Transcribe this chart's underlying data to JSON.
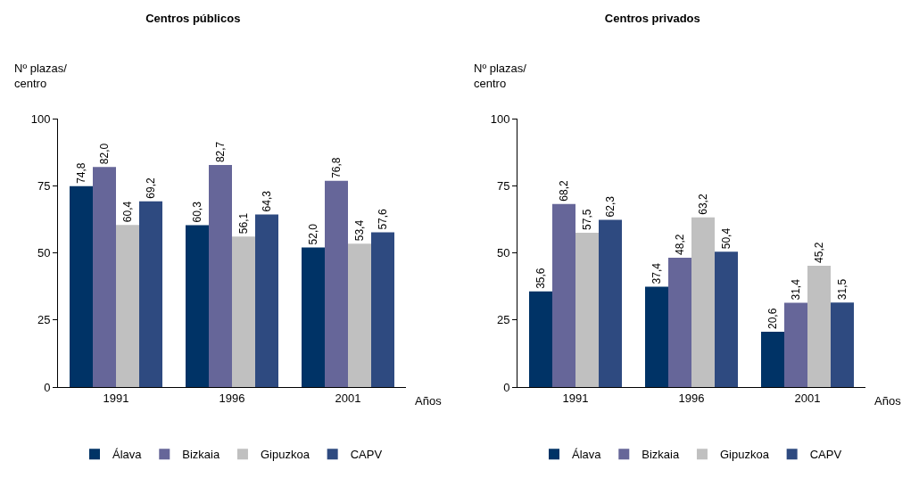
{
  "chart_data": [
    {
      "type": "bar",
      "title": "Centros públicos",
      "ylabel": "Nº plazas/ centro",
      "xlabel": "Años",
      "categories": [
        "1991",
        "1996",
        "2001"
      ],
      "ylim": [
        0,
        100
      ],
      "yticks": [
        0,
        25,
        50,
        75,
        100
      ],
      "grid": false,
      "legend": "bottom",
      "series": [
        {
          "name": "Álava",
          "color": "#003366",
          "values": [
            74.8,
            60.3,
            52.0
          ],
          "value_labels": [
            "74,8",
            "60,3",
            "52,0"
          ]
        },
        {
          "name": "Bizkaia",
          "color": "#666699",
          "values": [
            82.0,
            82.7,
            76.8
          ],
          "value_labels": [
            "82,0",
            "82,7",
            "76,8"
          ]
        },
        {
          "name": "Gipuzkoa",
          "color": "#c0c0c0",
          "values": [
            60.4,
            56.1,
            53.4
          ],
          "value_labels": [
            "60,4",
            "56,1",
            "53,4"
          ]
        },
        {
          "name": "CAPV",
          "color": "#2e4a80",
          "values": [
            69.2,
            64.3,
            57.6
          ],
          "value_labels": [
            "69,2",
            "64,3",
            "57,6"
          ]
        }
      ]
    },
    {
      "type": "bar",
      "title": "Centros privados",
      "ylabel": "Nº plazas/ centro",
      "xlabel": "Años",
      "categories": [
        "1991",
        "1996",
        "2001"
      ],
      "ylim": [
        0,
        100
      ],
      "yticks": [
        0,
        25,
        50,
        75,
        100
      ],
      "grid": false,
      "legend": "bottom",
      "series": [
        {
          "name": "Álava",
          "color": "#003366",
          "values": [
            35.6,
            37.4,
            20.6
          ],
          "value_labels": [
            "35,6",
            "37,4",
            "20,6"
          ]
        },
        {
          "name": "Bizkaia",
          "color": "#666699",
          "values": [
            68.2,
            48.2,
            31.4
          ],
          "value_labels": [
            "68,2",
            "48,2",
            "31,4"
          ]
        },
        {
          "name": "Gipuzkoa",
          "color": "#c0c0c0",
          "values": [
            57.5,
            63.2,
            45.2
          ],
          "value_labels": [
            "57,5",
            "63,2",
            "45,2"
          ]
        },
        {
          "name": "CAPV",
          "color": "#2e4a80",
          "values": [
            62.3,
            50.4,
            31.5
          ],
          "value_labels": [
            "62,3",
            "50,4",
            "31,5"
          ]
        }
      ]
    }
  ]
}
